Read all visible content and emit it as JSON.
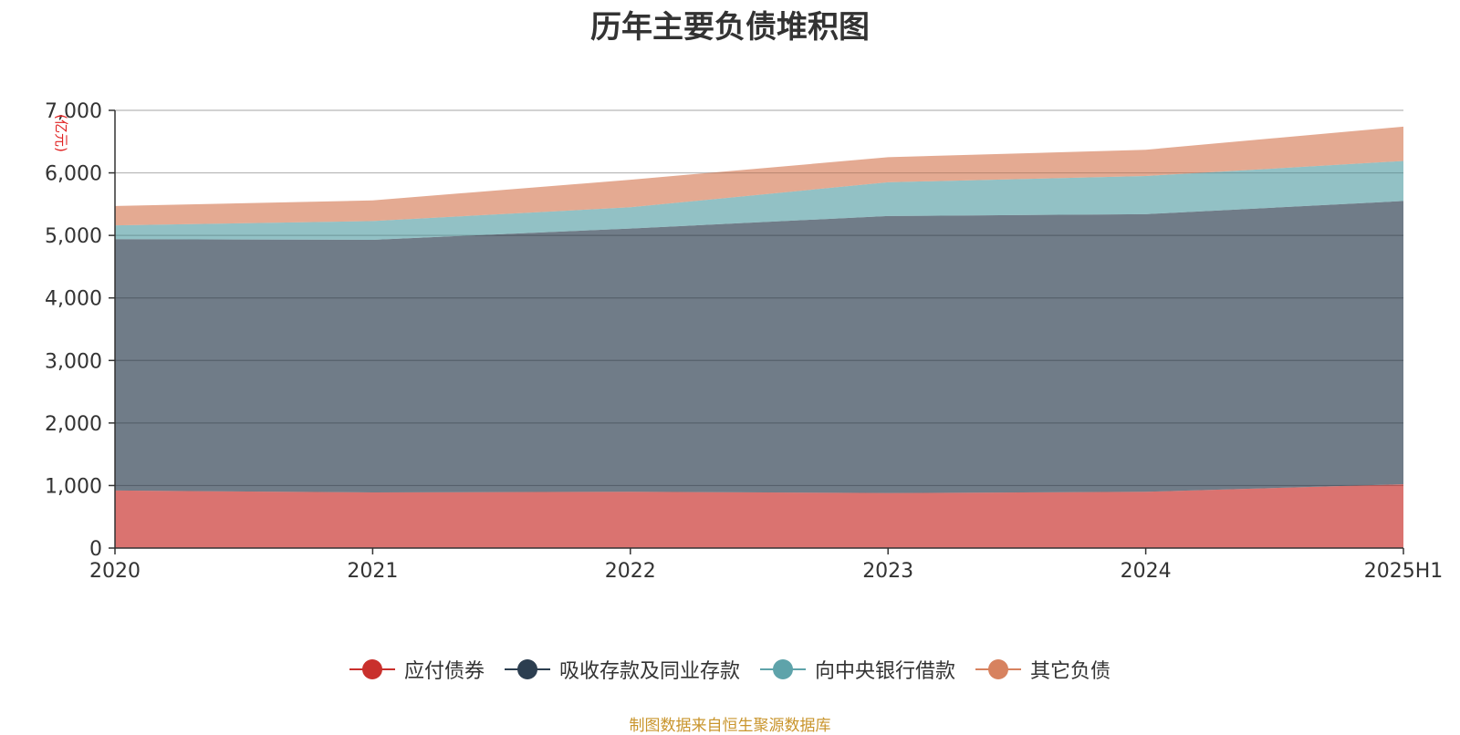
{
  "title": "历年主要负债堆积图",
  "source": "制图数据来自恒生聚源数据库",
  "colors": {
    "bonds": "#c9302c",
    "deposits": "#2c3e50",
    "central_bank": "#5ea3aa",
    "other": "#d7825f"
  },
  "chart_data": {
    "type": "area",
    "stacked": true,
    "title": "历年主要负债堆积图",
    "ylabel": "(亿元)",
    "xlabel": "",
    "x": [
      "2020",
      "2021",
      "2022",
      "2023",
      "2024",
      "2025H1"
    ],
    "ylim": [
      0,
      7000
    ],
    "yticks": [
      "0",
      "1,000",
      "2,000",
      "3,000",
      "4,000",
      "5,000",
      "6,000",
      "7,000"
    ],
    "grid": true,
    "legend_position": "bottom",
    "series": [
      {
        "name": "应付债券",
        "key": "bonds",
        "values": [
          920,
          890,
          900,
          880,
          900,
          1020
        ]
      },
      {
        "name": "吸收存款及同业存款",
        "key": "deposits",
        "values": [
          4020,
          4040,
          4210,
          4430,
          4440,
          4530
        ]
      },
      {
        "name": "向中央银行借款",
        "key": "central_bank",
        "values": [
          220,
          300,
          340,
          540,
          610,
          640
        ]
      },
      {
        "name": "其它负债",
        "key": "other",
        "values": [
          310,
          330,
          440,
          400,
          420,
          550
        ]
      }
    ]
  }
}
